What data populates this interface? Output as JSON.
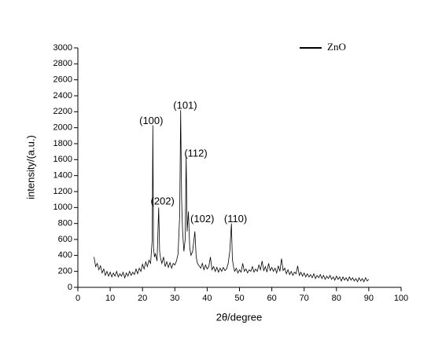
{
  "chart_data": {
    "type": "line",
    "xlabel": "2θ/degree",
    "ylabel": "intensity/(a.u.)",
    "xlim": [
      0,
      100
    ],
    "xticks": [
      0,
      10,
      20,
      30,
      40,
      50,
      60,
      70,
      80,
      90,
      100
    ],
    "ylim": [
      0,
      3000
    ],
    "yticks": [
      0,
      200,
      400,
      600,
      800,
      1000,
      1200,
      1400,
      1600,
      1800,
      2000,
      2200,
      2400,
      2600,
      2800,
      3000
    ],
    "legend": "top-right",
    "annotations": [
      {
        "text": "(100)",
        "x": 22.7,
        "y": 2080
      },
      {
        "text": "(101)",
        "x": 33.2,
        "y": 2270
      },
      {
        "text": "(112)",
        "x": 36.5,
        "y": 1670
      },
      {
        "text": "(202)",
        "x": 26.2,
        "y": 1070
      },
      {
        "text": "(102)",
        "x": 38.5,
        "y": 850
      },
      {
        "text": "(110)",
        "x": 48.8,
        "y": 850
      }
    ],
    "series": [
      {
        "name": "ZnO",
        "color": "#000000",
        "x": [
          5,
          5.5,
          6,
          6.5,
          7,
          7.5,
          8,
          8.5,
          9,
          9.5,
          10,
          10.5,
          11,
          11.5,
          12,
          12.5,
          13,
          13.5,
          14,
          14.5,
          15,
          15.5,
          16,
          16.5,
          17,
          17.5,
          18,
          18.5,
          19,
          19.5,
          20,
          20.5,
          21,
          21.5,
          22,
          22.5,
          23,
          23.2,
          23.4,
          23.7,
          24,
          24.5,
          25,
          25.3,
          25.6,
          26,
          26.5,
          27,
          27.5,
          28,
          28.5,
          29,
          29.5,
          30,
          30.5,
          31,
          31.5,
          31.8,
          32.1,
          32.4,
          32.8,
          33.2,
          33.5,
          33.8,
          34.2,
          34.6,
          35,
          35.5,
          36.2,
          36.6,
          37,
          37.5,
          38,
          38.5,
          39,
          39.5,
          40,
          40.5,
          41,
          41.5,
          42,
          42.5,
          43,
          43.5,
          44,
          44.5,
          45,
          45.5,
          46,
          46.5,
          47,
          47.5,
          47.8,
          48.2,
          48.5,
          49,
          49.5,
          50,
          50.5,
          51,
          51.5,
          52,
          52.5,
          53,
          53.5,
          54,
          54.5,
          55,
          55.5,
          56,
          56.5,
          57,
          57.5,
          58,
          58.5,
          59,
          59.5,
          60,
          60.5,
          61,
          61.5,
          62,
          62.5,
          63,
          63.5,
          64,
          64.5,
          65,
          65.5,
          66,
          66.5,
          67,
          67.5,
          68,
          68.5,
          69,
          69.5,
          70,
          70.5,
          71,
          71.5,
          72,
          72.5,
          73,
          73.5,
          74,
          74.5,
          75,
          75.5,
          76,
          76.5,
          77,
          77.5,
          78,
          78.5,
          79,
          79.5,
          80,
          80.5,
          81,
          81.5,
          82,
          82.5,
          83,
          83.5,
          84,
          84.5,
          85,
          85.5,
          86,
          86.5,
          87,
          87.5,
          88,
          88.5,
          89,
          89.5,
          90
        ],
        "values": [
          380,
          260,
          300,
          220,
          270,
          180,
          230,
          150,
          200,
          140,
          190,
          130,
          180,
          140,
          200,
          130,
          170,
          140,
          190,
          120,
          180,
          140,
          200,
          150,
          190,
          160,
          230,
          170,
          240,
          200,
          290,
          230,
          320,
          260,
          340,
          300,
          600,
          2030,
          500,
          380,
          420,
          330,
          1000,
          450,
          360,
          300,
          380,
          260,
          320,
          250,
          310,
          240,
          300,
          280,
          330,
          420,
          900,
          2220,
          1100,
          700,
          450,
          600,
          1650,
          700,
          950,
          500,
          400,
          450,
          700,
          380,
          300,
          270,
          240,
          300,
          220,
          280,
          230,
          260,
          380,
          220,
          260,
          200,
          250,
          190,
          240,
          200,
          250,
          210,
          230,
          300,
          450,
          800,
          350,
          250,
          200,
          240,
          180,
          220,
          190,
          300,
          200,
          230,
          180,
          220,
          200,
          260,
          190,
          230,
          200,
          280,
          220,
          330,
          210,
          260,
          190,
          300,
          210,
          250,
          200,
          240,
          180,
          270,
          200,
          360,
          210,
          240,
          170,
          220,
          160,
          200,
          150,
          190,
          170,
          270,
          150,
          190,
          140,
          180,
          130,
          170,
          130,
          160,
          120,
          170,
          110,
          150,
          120,
          160,
          110,
          150,
          100,
          140,
          110,
          150,
          100,
          130,
          90,
          140,
          100,
          130,
          80,
          130,
          90,
          120,
          80,
          130,
          90,
          120,
          80,
          110,
          70,
          120,
          80,
          110,
          70,
          120,
          80,
          100
        ]
      }
    ]
  }
}
